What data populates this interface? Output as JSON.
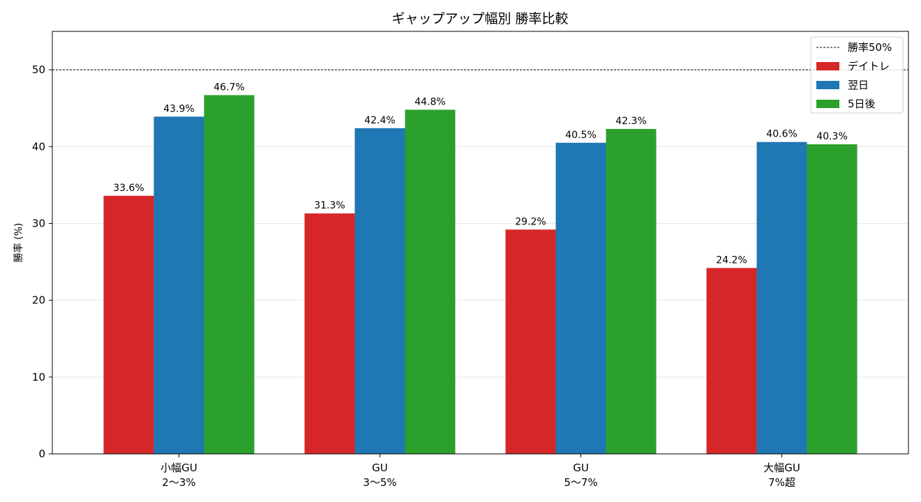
{
  "chart_data": {
    "type": "bar",
    "title": "ギャップアップ幅別 勝率比較",
    "xlabel": "",
    "ylabel": "勝率 (%)",
    "ylim": [
      0,
      55
    ],
    "yticks": [
      0,
      10,
      20,
      30,
      40,
      50
    ],
    "categories": [
      [
        "小幅GU",
        "2〜3%"
      ],
      [
        "GU",
        "3〜5%"
      ],
      [
        "GU",
        "5〜7%"
      ],
      [
        "大幅GU",
        "7%超"
      ]
    ],
    "series": [
      {
        "name": "デイトレ",
        "color": "#d62728",
        "values": [
          33.6,
          31.3,
          29.2,
          24.2
        ],
        "labels": [
          "33.6%",
          "31.3%",
          "29.2%",
          "24.2%"
        ]
      },
      {
        "name": "翌日",
        "color": "#1f77b4",
        "values": [
          43.9,
          42.4,
          40.5,
          40.6
        ],
        "labels": [
          "43.9%",
          "42.4%",
          "40.5%",
          "40.6%"
        ]
      },
      {
        "name": "5日後",
        "color": "#2ca02c",
        "values": [
          46.7,
          44.8,
          42.3,
          40.3
        ],
        "labels": [
          "46.7%",
          "44.8%",
          "42.3%",
          "40.3%"
        ]
      }
    ],
    "reference_line": {
      "name": "勝率50%",
      "value": 50,
      "style": "dashed",
      "color": "#000000"
    },
    "grid": "y",
    "legend_position": "top-right"
  }
}
